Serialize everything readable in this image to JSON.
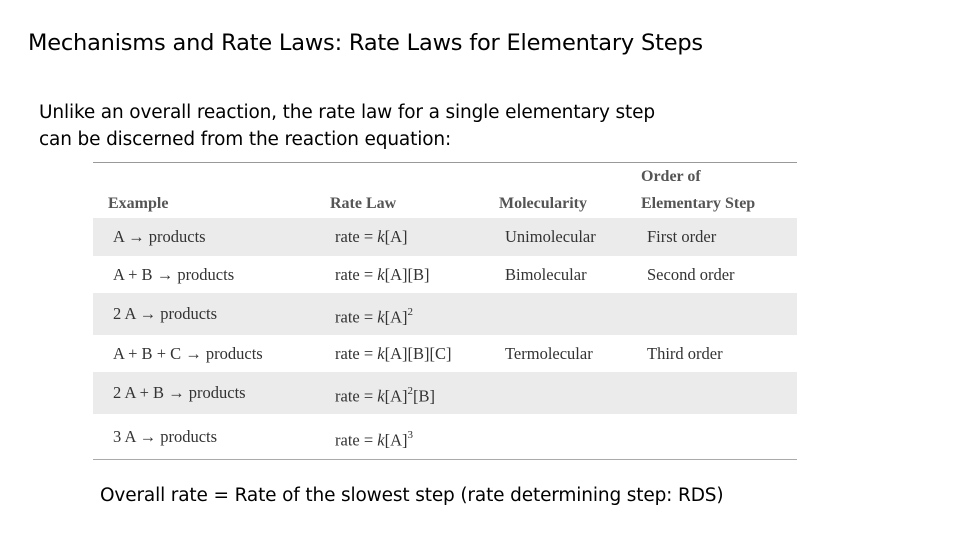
{
  "title": "Mechanisms and Rate Laws: Rate Laws for Elementary Steps",
  "intro_lines": [
    "Unlike an overall reaction, the rate law for a single elementary step",
    "can be discerned from the reaction equation:"
  ],
  "table": {
    "headers": {
      "example": "Example",
      "rate_law": "Rate Law",
      "molecularity": "Molecularity",
      "order_line1": "Order of",
      "order_line2": "Elementary Step"
    },
    "rows": [
      {
        "example": "A → products",
        "rate_prefix": "rate = ",
        "k": "k",
        "rate_main": "[A]",
        "sup": "",
        "rate_suffix": "",
        "molecularity": "Unimolecular",
        "order": "First order"
      },
      {
        "example": "A + B → products",
        "rate_prefix": "rate = ",
        "k": "k",
        "rate_main": "[A][B]",
        "sup": "",
        "rate_suffix": "",
        "molecularity": "Bimolecular",
        "order": "Second order"
      },
      {
        "example": "2 A → products",
        "rate_prefix": "rate = ",
        "k": "k",
        "rate_main": "[A]",
        "sup": "2",
        "rate_suffix": "",
        "molecularity": "",
        "order": ""
      },
      {
        "example": "A + B + C → products",
        "rate_prefix": "rate = ",
        "k": "k",
        "rate_main": "[A][B][C]",
        "sup": "",
        "rate_suffix": "",
        "molecularity": "Termolecular",
        "order": "Third order"
      },
      {
        "example": "2 A + B → products",
        "rate_prefix": "rate = ",
        "k": "k",
        "rate_main": "[A]",
        "sup": "2",
        "rate_suffix": "[B]",
        "molecularity": "",
        "order": ""
      },
      {
        "example": "3 A → products",
        "rate_prefix": "rate = ",
        "k": "k",
        "rate_main": "[A]",
        "sup": "3",
        "rate_suffix": "",
        "molecularity": "",
        "order": ""
      }
    ]
  },
  "footer": "Overall rate = Rate of the slowest step (rate determining step: RDS)"
}
